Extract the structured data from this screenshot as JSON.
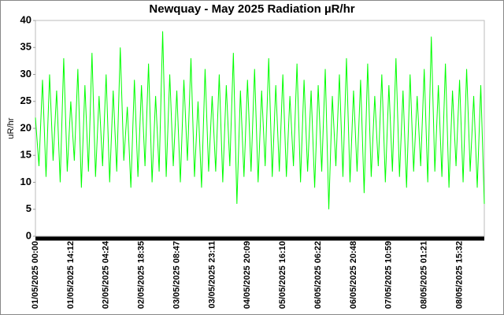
{
  "chart_data": {
    "type": "line",
    "title": "Newquay -  May  2025  Radiation µR/hr",
    "y_label": "uR/hr",
    "categories": [
      "01/05/2025 00:00",
      null,
      null,
      null,
      null,
      null,
      null,
      null,
      null,
      null,
      "01/05/2025 14:12",
      null,
      null,
      null,
      null,
      null,
      null,
      null,
      null,
      null,
      "02/05/2025 04:24",
      null,
      null,
      null,
      null,
      null,
      null,
      null,
      null,
      null,
      "02/05/2025 18:35",
      null,
      null,
      null,
      null,
      null,
      null,
      null,
      null,
      null,
      "03/05/2025 08:47",
      null,
      null,
      null,
      null,
      null,
      null,
      null,
      null,
      null,
      "03/05/2025 23:11",
      null,
      null,
      null,
      null,
      null,
      null,
      null,
      null,
      null,
      "04/05/2025 20:09",
      null,
      null,
      null,
      null,
      null,
      null,
      null,
      null,
      null,
      "05/05/2025 16:10",
      null,
      null,
      null,
      null,
      null,
      null,
      null,
      null,
      null,
      "06/05/2025 06:22",
      null,
      null,
      null,
      null,
      null,
      null,
      null,
      null,
      null,
      "06/05/2025 20:48",
      null,
      null,
      null,
      null,
      null,
      null,
      null,
      null,
      null,
      "07/05/2025 10:59",
      null,
      null,
      null,
      null,
      null,
      null,
      null,
      null,
      null,
      "08/05/2025 01:21",
      null,
      null,
      null,
      null,
      null,
      null,
      null,
      null,
      null,
      "08/05/2025 15:32",
      null,
      null,
      null,
      null,
      null,
      null,
      null
    ],
    "values": [
      22,
      13,
      29,
      11,
      30,
      14,
      27,
      10,
      33,
      12,
      25,
      14,
      31,
      9,
      28,
      12,
      34,
      11,
      26,
      13,
      30,
      10,
      27,
      12,
      35,
      14,
      24,
      9,
      29,
      11,
      28,
      13,
      32,
      10,
      26,
      12,
      38,
      11,
      30,
      13,
      27,
      10,
      29,
      14,
      33,
      11,
      25,
      9,
      31,
      12,
      26,
      12,
      30,
      10,
      28,
      13,
      34,
      6,
      27,
      11,
      29,
      12,
      31,
      10,
      27,
      13,
      33,
      11,
      28,
      12,
      30,
      11,
      26,
      13,
      32,
      10,
      29,
      12,
      27,
      9,
      28,
      12,
      31,
      5,
      26,
      13,
      30,
      11,
      33,
      10,
      27,
      12,
      29,
      8,
      32,
      11,
      26,
      13,
      30,
      10,
      28,
      12,
      33,
      11,
      27,
      9,
      30,
      12,
      26,
      13,
      31,
      10,
      37,
      12,
      28,
      11,
      32,
      9,
      27,
      13,
      29,
      10,
      31,
      12,
      26,
      9,
      28,
      6
    ],
    "color": "#00ff00",
    "ylim": [
      0,
      40
    ],
    "yticks": [
      0,
      5,
      10,
      15,
      20,
      25,
      30,
      35,
      40
    ],
    "grid": false
  }
}
